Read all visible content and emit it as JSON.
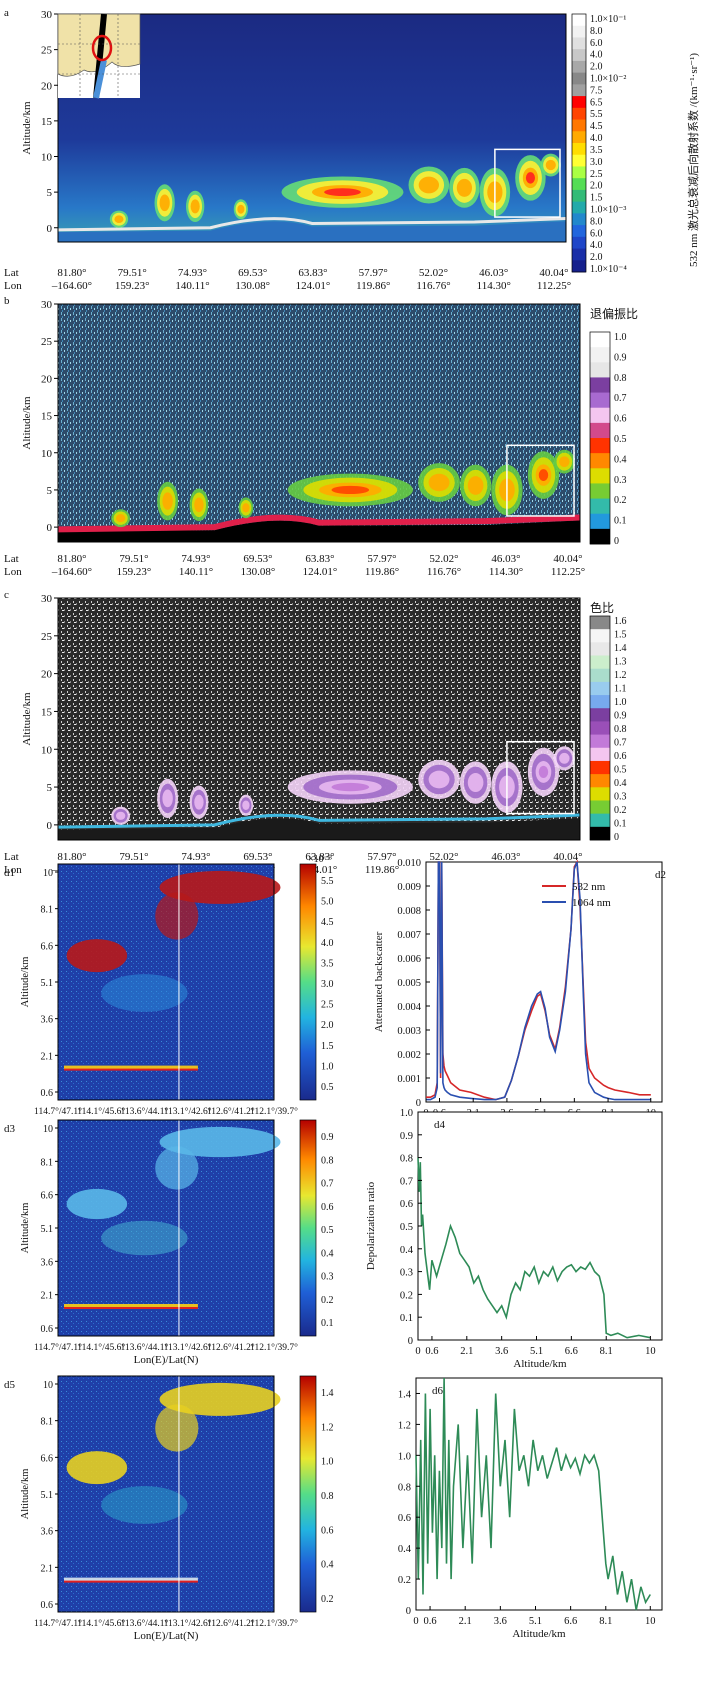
{
  "curtain_ticks": {
    "lat_label": "Lat",
    "lon_label": "Lon",
    "lat": [
      "81.80°",
      "79.51°",
      "74.93°",
      "69.53°",
      "63.83°",
      "57.97°",
      "52.02°",
      "46.03°",
      "40.04°"
    ],
    "lon": [
      "–164.60°",
      "159.23°",
      "140.11°",
      "130.08°",
      "124.01°",
      "119.86°",
      "116.76°",
      "114.30°",
      "112.25°"
    ]
  },
  "d_xticks": [
    "114.7°/47.1°",
    "114.1°/45.6°",
    "113.6°/44.1°",
    "113.1°/42.6°",
    "112.6°/41.2°",
    "112.1°/39.7°"
  ],
  "colors": {
    "jet_low": "#1a2a8c",
    "red_line": "#d62728",
    "blue_line": "#2a4fb0",
    "green_line": "#2e8b57"
  },
  "chart_data": [
    {
      "id": "a",
      "type": "heatmap",
      "panel_label": "a",
      "ylabel": "Altitude/km",
      "yticks": [
        "0",
        "5",
        "10",
        "15",
        "20",
        "25",
        "30"
      ],
      "ylim": [
        -2,
        30
      ],
      "colorbar_title": "532 nm 激光总衰减后向散射系数 /(km⁻¹·sr⁻¹)",
      "colorbar_labels": [
        "1.0×10⁻¹",
        "8.0",
        "6.0",
        "4.0",
        "2.0",
        "1.0×10⁻²",
        "7.5",
        "6.5",
        "5.5",
        "4.5",
        "4.0",
        "3.5",
        "3.0",
        "2.5",
        "2.0",
        "1.5",
        "1.0×10⁻³",
        "8.0",
        "6.0",
        "4.0",
        "2.0",
        "1.0×10⁻⁴"
      ],
      "colorbar_colors": [
        "#ffffff",
        "#f2f2f2",
        "#e0e0e0",
        "#c8c8c8",
        "#a8a8a8",
        "#888888",
        "#a0a0a0",
        "#ff0000",
        "#ff4400",
        "#ff7700",
        "#ffaa00",
        "#ffdd00",
        "#ffff33",
        "#aaff44",
        "#55dd55",
        "#33bb77",
        "#22aaaa",
        "#2288cc",
        "#2266dd",
        "#1f46c8",
        "#1a2fa8",
        "#15208c"
      ],
      "has_inset_map": true
    },
    {
      "id": "b",
      "type": "heatmap",
      "panel_label": "b",
      "ylabel": "Altitude/km",
      "yticks": [
        "0",
        "5",
        "10",
        "15",
        "20",
        "25",
        "30"
      ],
      "ylim": [
        -2,
        30
      ],
      "colorbar_title": "退偏振比",
      "colorbar_labels": [
        "1.0",
        "0.9",
        "0.8",
        "0.7",
        "0.6",
        "0.5",
        "0.4",
        "0.3",
        "0.2",
        "0.1",
        "0"
      ],
      "colorbar_colors": [
        "#ffffff",
        "#f2f2f2",
        "#e6e6e6",
        "#7b3fa0",
        "#a86ad0",
        "#f4c6f0",
        "#d24a8c",
        "#ff3300",
        "#ff8800",
        "#dddd00",
        "#77cc33",
        "#33bbaa",
        "#2299dd",
        "#000000"
      ]
    },
    {
      "id": "c",
      "type": "heatmap",
      "panel_label": "c",
      "ylabel": "Altitude/km",
      "yticks": [
        "0",
        "5",
        "10",
        "15",
        "20",
        "25",
        "30"
      ],
      "ylim": [
        -2,
        30
      ],
      "colorbar_title": "色比",
      "colorbar_labels": [
        "1.6",
        "1.5",
        "1.4",
        "1.3",
        "1.2",
        "1.1",
        "1.0",
        "0.9",
        "0.8",
        "0.7",
        "0.6",
        "0.5",
        "0.4",
        "0.3",
        "0.2",
        "0.1",
        "0"
      ],
      "colorbar_colors": [
        "#888888",
        "#f5f5f5",
        "#e8e8e8",
        "#cceecc",
        "#aaddcc",
        "#99ccee",
        "#77aaee",
        "#7b3fa0",
        "#9a4fb8",
        "#c27ad8",
        "#f4c6f0",
        "#ff3300",
        "#ff8800",
        "#dddd00",
        "#77cc33",
        "#33bbaa",
        "#000000"
      ]
    },
    {
      "id": "d1",
      "type": "heatmap",
      "panel_label": "d1",
      "ylabel": "Altitude/km",
      "xlabel": "Lon(E)/Lat(N)",
      "yticks": [
        "0.6",
        "2.1",
        "3.6",
        "5.1",
        "6.6",
        "8.1",
        "10"
      ],
      "colorbar_exponent": "×10⁻³",
      "colorbar_labels": [
        "5.5",
        "5.0",
        "4.5",
        "4.0",
        "3.5",
        "3.0",
        "2.5",
        "2.0",
        "1.5",
        "1.0",
        "0.5"
      ]
    },
    {
      "id": "d2",
      "type": "line",
      "panel_label": "d2",
      "ylabel": "Attenuated backscatter",
      "xlabel": "Altitude/km",
      "xticks": [
        "0",
        "0.6",
        "2.1",
        "3.6",
        "5.1",
        "6.6",
        "8.1",
        "10"
      ],
      "yticks": [
        "0",
        "0.001",
        "0.002",
        "0.003",
        "0.004",
        "0.005",
        "0.006",
        "0.007",
        "0.008",
        "0.009",
        "0.010"
      ],
      "xlim": [
        0,
        10.5
      ],
      "ylim": [
        0,
        0.01
      ],
      "series": [
        {
          "name": "532 nm",
          "x": [
            0.0,
            0.2,
            0.4,
            0.5,
            0.55,
            0.6,
            0.65,
            0.7,
            0.75,
            0.8,
            0.85,
            0.95,
            1.1,
            1.5,
            2.0,
            2.6,
            3.1,
            3.5,
            3.8,
            4.1,
            4.4,
            4.7,
            4.95,
            5.1,
            5.3,
            5.5,
            5.75,
            5.95,
            6.2,
            6.45,
            6.6,
            6.72,
            6.85,
            7.0,
            7.1,
            7.25,
            7.5,
            7.9,
            8.1,
            8.4,
            9.0,
            9.5,
            10.0
          ],
          "y": [
            0.0002,
            0.0002,
            0.0003,
            0.0008,
            0.01,
            0.01,
            0.001,
            0.01,
            0.002,
            0.0015,
            0.0013,
            0.0011,
            0.0008,
            0.0005,
            0.0004,
            0.0002,
            0.0001,
            0.0002,
            0.0009,
            0.0019,
            0.003,
            0.0038,
            0.0044,
            0.0045,
            0.0038,
            0.0028,
            0.0022,
            0.0031,
            0.0048,
            0.0072,
            0.0098,
            0.01,
            0.0082,
            0.0048,
            0.0025,
            0.0014,
            0.001,
            0.0007,
            0.0006,
            0.0005,
            0.0004,
            0.0003,
            0.0003
          ]
        },
        {
          "name": "1064 nm",
          "x": [
            0.0,
            0.2,
            0.4,
            0.5,
            0.55,
            0.6,
            0.65,
            0.7,
            0.75,
            0.8,
            0.85,
            0.95,
            1.1,
            1.5,
            2.0,
            2.6,
            3.1,
            3.5,
            3.8,
            4.1,
            4.4,
            4.7,
            4.95,
            5.1,
            5.3,
            5.5,
            5.75,
            5.95,
            6.2,
            6.45,
            6.6,
            6.72,
            6.85,
            7.0,
            7.1,
            7.25,
            7.5,
            7.9,
            8.1,
            8.4,
            9.0,
            9.5,
            10.0
          ],
          "y": [
            0.0001,
            0.0001,
            0.0002,
            0.0006,
            0.01,
            0.01,
            0.0012,
            0.01,
            0.0008,
            0.0006,
            0.0005,
            0.0004,
            0.0003,
            0.0002,
            0.00015,
            0.0001,
            0.0001,
            0.0002,
            0.0009,
            0.0019,
            0.0031,
            0.004,
            0.0045,
            0.0046,
            0.0039,
            0.0027,
            0.0021,
            0.003,
            0.0046,
            0.0072,
            0.0097,
            0.01,
            0.0085,
            0.0045,
            0.002,
            0.0008,
            0.0004,
            0.0002,
            0.00015,
            0.0001,
            0.0001,
            0.0001,
            0.0001
          ]
        }
      ]
    },
    {
      "id": "d3",
      "type": "heatmap",
      "panel_label": "d3",
      "ylabel": "Altitude/km",
      "xlabel": "Lon(E)/Lat(N)",
      "yticks": [
        "0.6",
        "2.1",
        "3.6",
        "5.1",
        "6.6",
        "8.1",
        "10"
      ],
      "colorbar_labels": [
        "0.9",
        "0.8",
        "0.7",
        "0.6",
        "0.5",
        "0.4",
        "0.3",
        "0.2",
        "0.1"
      ]
    },
    {
      "id": "d4",
      "type": "line",
      "panel_label": "d4",
      "ylabel": "Depolarization ratio",
      "xlabel": "Altitude/km",
      "xticks": [
        "0",
        "0.6",
        "2.1",
        "3.6",
        "5.1",
        "6.6",
        "8.1",
        "10"
      ],
      "yticks": [
        "0",
        "0.1",
        "0.2",
        "0.3",
        "0.4",
        "0.5",
        "0.6",
        "0.7",
        "0.8",
        "0.9",
        "1.0"
      ],
      "xlim": [
        0,
        10.5
      ],
      "ylim": [
        0,
        1.0
      ],
      "series": [
        {
          "x": [
            0.0,
            0.05,
            0.1,
            0.15,
            0.2,
            0.3,
            0.4,
            0.5,
            0.6,
            0.8,
            1.0,
            1.2,
            1.4,
            1.6,
            1.8,
            2.0,
            2.2,
            2.4,
            2.6,
            2.8,
            3.0,
            3.2,
            3.4,
            3.6,
            3.8,
            4.0,
            4.2,
            4.4,
            4.6,
            4.8,
            5.0,
            5.2,
            5.4,
            5.6,
            5.8,
            6.0,
            6.2,
            6.4,
            6.6,
            6.8,
            7.0,
            7.2,
            7.4,
            7.6,
            7.8,
            8.0,
            8.1,
            8.3,
            8.6,
            9.0,
            9.5,
            10.0
          ],
          "y": [
            0.8,
            0.65,
            0.78,
            0.5,
            0.55,
            0.38,
            0.3,
            0.22,
            0.35,
            0.28,
            0.35,
            0.42,
            0.5,
            0.45,
            0.38,
            0.35,
            0.32,
            0.25,
            0.28,
            0.22,
            0.18,
            0.15,
            0.12,
            0.15,
            0.1,
            0.2,
            0.25,
            0.22,
            0.3,
            0.28,
            0.32,
            0.25,
            0.3,
            0.28,
            0.32,
            0.26,
            0.3,
            0.32,
            0.33,
            0.3,
            0.32,
            0.31,
            0.34,
            0.3,
            0.28,
            0.2,
            0.03,
            0.02,
            0.03,
            0.01,
            0.02,
            0.01
          ]
        }
      ]
    },
    {
      "id": "d5",
      "type": "heatmap",
      "panel_label": "d5",
      "ylabel": "Altitude/km",
      "xlabel": "Lon(E)/Lat(N)",
      "yticks": [
        "0.6",
        "2.1",
        "3.6",
        "5.1",
        "6.6",
        "8.1",
        "10"
      ],
      "colorbar_labels": [
        "1.4",
        "1.2",
        "1.0",
        "0.8",
        "0.6",
        "0.4",
        "0.2"
      ]
    },
    {
      "id": "d6",
      "type": "line",
      "panel_label": "d6",
      "xlabel": "Altitude/km",
      "xticks": [
        "0",
        "0.6",
        "2.1",
        "3.6",
        "5.1",
        "6.6",
        "8.1",
        "10"
      ],
      "yticks": [
        "0",
        "0.2",
        "0.4",
        "0.6",
        "0.8",
        "1.0",
        "1.2",
        "1.4"
      ],
      "xlim": [
        0,
        10.5
      ],
      "ylim": [
        0,
        1.5
      ],
      "series": [
        {
          "x": [
            0.0,
            0.1,
            0.2,
            0.3,
            0.4,
            0.5,
            0.6,
            0.7,
            0.8,
            0.9,
            1.0,
            1.1,
            1.2,
            1.3,
            1.4,
            1.5,
            1.6,
            1.8,
            2.0,
            2.2,
            2.4,
            2.6,
            2.8,
            3.0,
            3.2,
            3.4,
            3.6,
            3.8,
            4.0,
            4.2,
            4.4,
            4.6,
            4.8,
            5.0,
            5.2,
            5.4,
            5.6,
            5.8,
            6.0,
            6.2,
            6.4,
            6.6,
            6.8,
            7.0,
            7.2,
            7.4,
            7.6,
            7.8,
            8.0,
            8.1,
            8.2,
            8.4,
            8.6,
            8.8,
            9.0,
            9.2,
            9.4,
            9.6,
            9.8,
            10.0
          ],
          "y": [
            1.0,
            0.2,
            1.1,
            0.1,
            1.4,
            0.3,
            1.3,
            0.5,
            1.0,
            0.2,
            0.9,
            0.4,
            1.5,
            0.3,
            1.1,
            0.2,
            0.8,
            1.2,
            0.4,
            1.0,
            0.3,
            1.3,
            0.6,
            1.0,
            0.4,
            1.4,
            0.8,
            1.1,
            0.6,
            1.3,
            0.9,
            1.0,
            0.8,
            1.1,
            0.9,
            1.0,
            0.85,
            0.95,
            1.05,
            0.9,
            1.0,
            0.92,
            0.98,
            0.88,
            1.0,
            0.95,
            1.0,
            0.9,
            0.5,
            0.3,
            0.2,
            0.35,
            0.1,
            0.25,
            0.05,
            0.2,
            0.0,
            0.15,
            0.05,
            0.1
          ]
        }
      ]
    }
  ]
}
